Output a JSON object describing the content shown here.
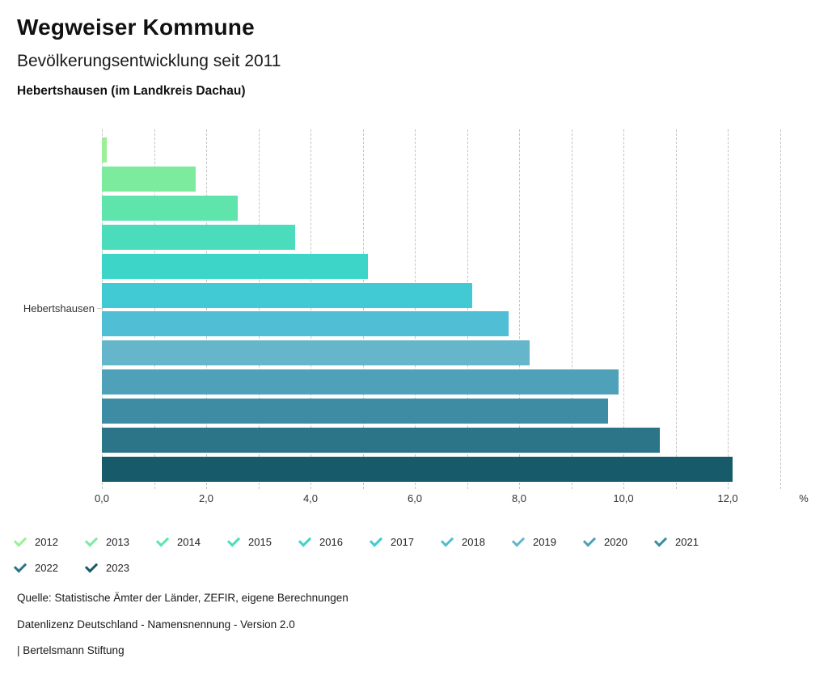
{
  "header": {
    "title": "Wegweiser Kommune",
    "subtitle": "Bevölkerungsentwicklung seit 2011",
    "location": "Hebertshausen (im Landkreis Dachau)"
  },
  "chart_data": {
    "type": "bar",
    "orientation": "horizontal",
    "category": "Hebertshausen",
    "unit": "%",
    "xlim": [
      0,
      13
    ],
    "tick_step": 1,
    "label_step": 2,
    "tick_labels": [
      "0,0",
      "2,0",
      "4,0",
      "6,0",
      "8,0",
      "10,0",
      "12,0"
    ],
    "grid": "dashed-vertical",
    "legend_position": "bottom",
    "series": [
      {
        "name": "2012",
        "value": 0.1,
        "color": "#9bef97"
      },
      {
        "name": "2013",
        "value": 1.8,
        "color": "#7deb9e"
      },
      {
        "name": "2014",
        "value": 2.6,
        "color": "#5fe4ac"
      },
      {
        "name": "2015",
        "value": 3.7,
        "color": "#4bddbb"
      },
      {
        "name": "2016",
        "value": 5.1,
        "color": "#3ed5c9"
      },
      {
        "name": "2017",
        "value": 7.1,
        "color": "#41c9d4"
      },
      {
        "name": "2018",
        "value": 7.8,
        "color": "#50bed4"
      },
      {
        "name": "2019",
        "value": 8.2,
        "color": "#66b6cb"
      },
      {
        "name": "2020",
        "value": 9.9,
        "color": "#4fa1b9"
      },
      {
        "name": "2021",
        "value": 9.7,
        "color": "#3d8ca3"
      },
      {
        "name": "2022",
        "value": 10.7,
        "color": "#2c7488"
      },
      {
        "name": "2023",
        "value": 12.1,
        "color": "#175a6a"
      }
    ]
  },
  "footer": {
    "source": "Quelle: Statistische Ämter der Länder, ZEFIR, eigene Berechnungen",
    "license": "Datenlizenz Deutschland - Namensnennung - Version 2.0",
    "attribution": "| Bertelsmann Stiftung"
  }
}
